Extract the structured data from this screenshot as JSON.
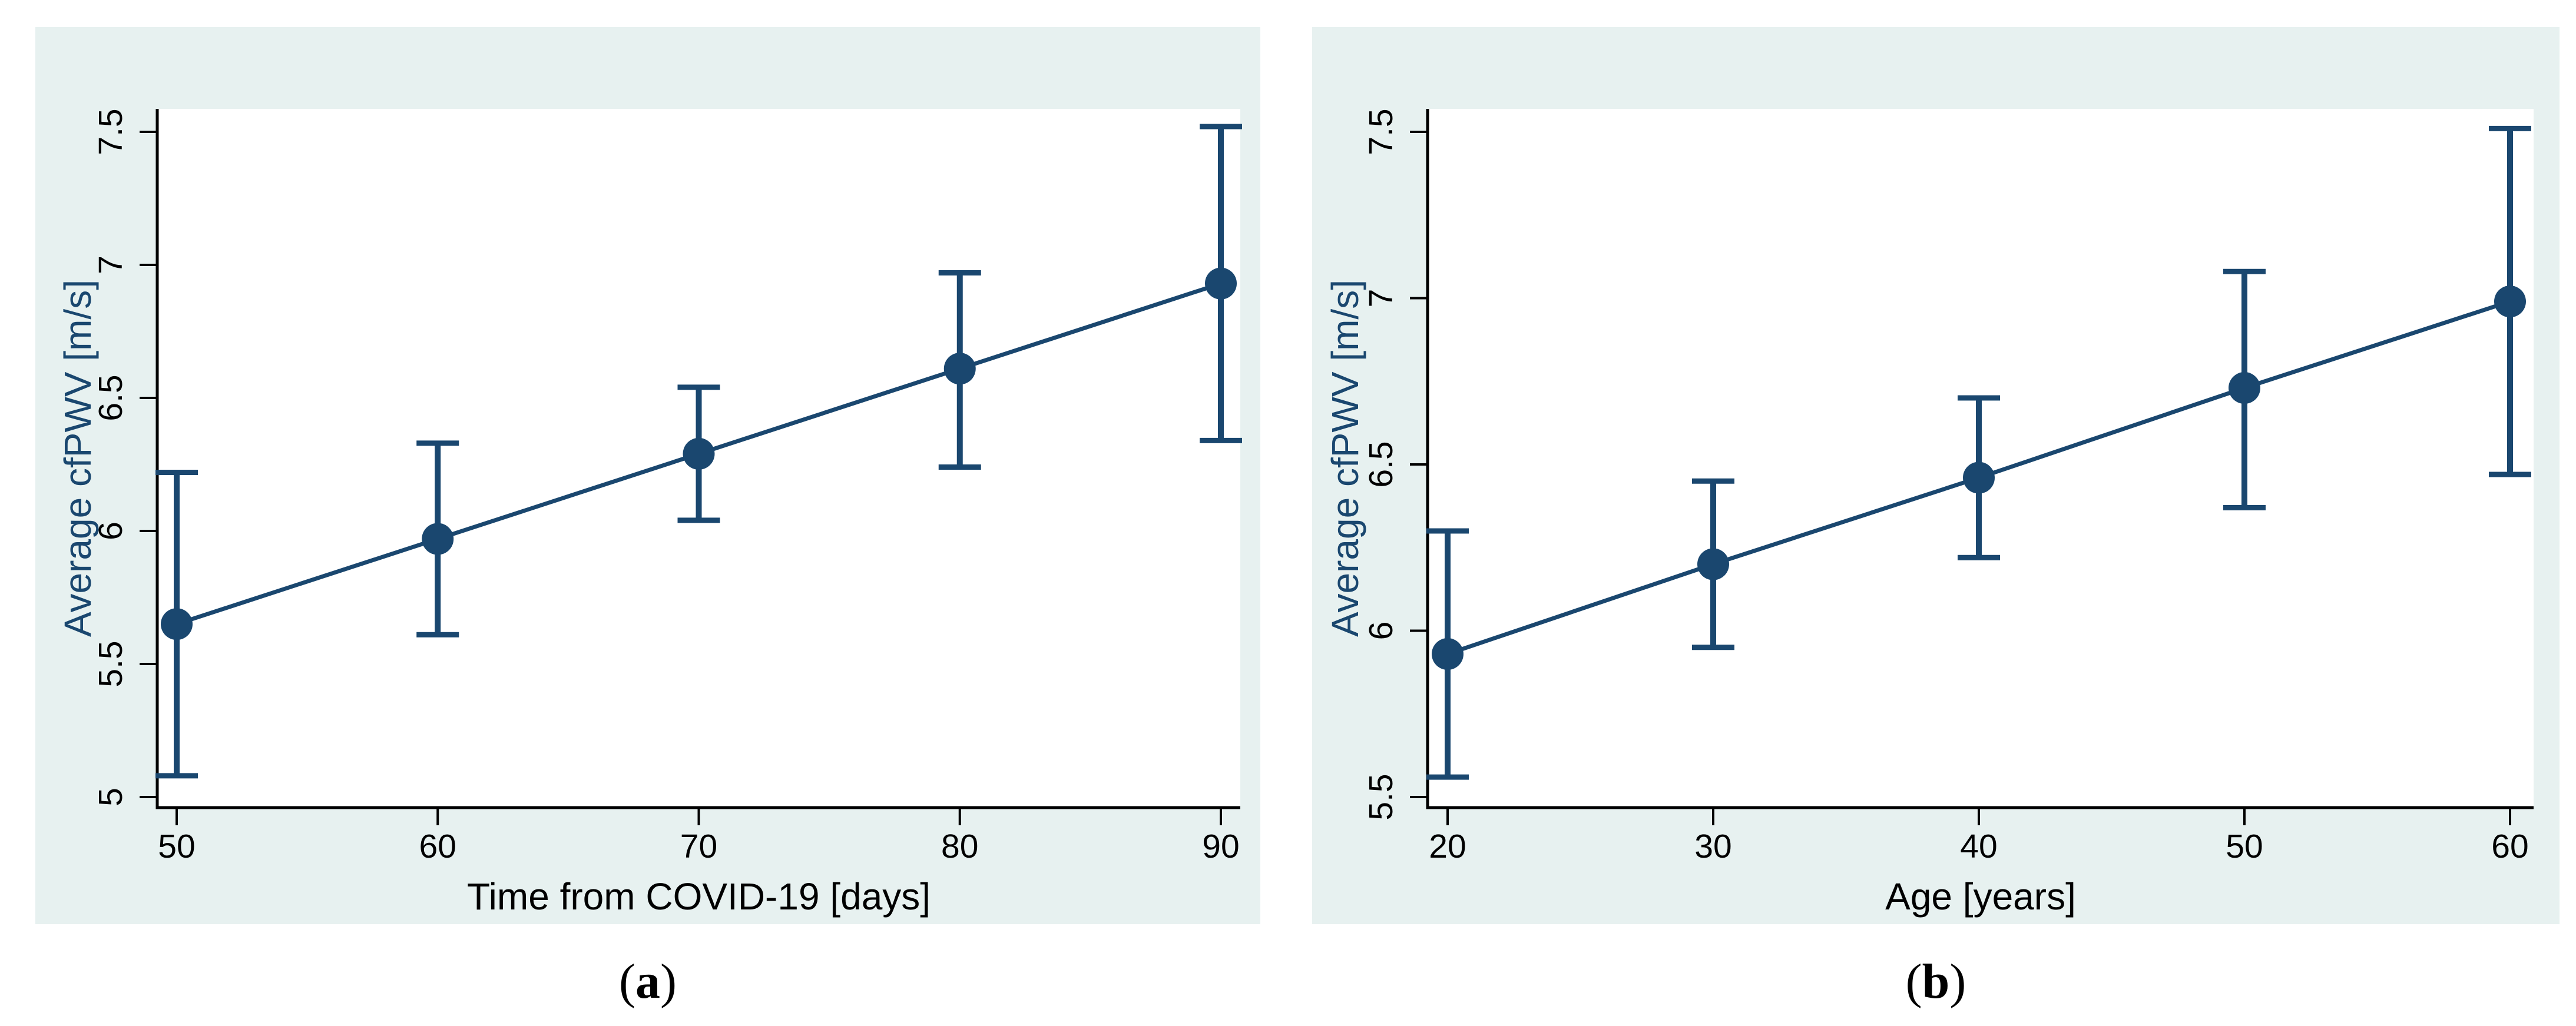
{
  "page": {
    "background": "#ffffff"
  },
  "style": {
    "panel_background": "#e7f1f0",
    "plot_background": "#ffffff",
    "series_color": "#1a476f",
    "axis_color": "#000000",
    "tick_label_color": "#000000",
    "axis_title_color": "#1a476f"
  },
  "captions": [
    {
      "open": "(",
      "label": "a",
      "close": ")"
    },
    {
      "open": "(",
      "label": "b",
      "close": ")"
    }
  ],
  "chart_data": [
    {
      "panel": "a",
      "type": "line",
      "title": "",
      "xlabel": "Time from COVID-19 [days]",
      "ylabel": "Average cfPWV [m/s]",
      "x": [
        50,
        60,
        70,
        80,
        90
      ],
      "series": [
        {
          "name": "Average cfPWV",
          "values": [
            5.65,
            5.97,
            6.29,
            6.61,
            6.93
          ]
        }
      ],
      "ci_low": [
        5.08,
        5.61,
        6.04,
        6.24,
        6.34
      ],
      "ci_high": [
        6.22,
        6.33,
        6.54,
        6.97,
        7.52
      ],
      "x_ticks": [
        50,
        60,
        70,
        80,
        90
      ],
      "y_ticks": [
        5,
        5.5,
        6,
        6.5,
        7,
        7.5
      ],
      "xlim": [
        49.3,
        90.7
      ],
      "ylim": [
        4.96,
        7.59
      ],
      "grid": false,
      "legend": "none",
      "error_bars": true,
      "marker": "circle"
    },
    {
      "panel": "b",
      "type": "line",
      "title": "",
      "xlabel": "Age [years]",
      "ylabel": "Average cfPWV [m/s]",
      "x": [
        20,
        30,
        40,
        50,
        60
      ],
      "series": [
        {
          "name": "Average cfPWV",
          "values": [
            5.93,
            6.2,
            6.46,
            6.73,
            6.99
          ]
        }
      ],
      "ci_low": [
        5.56,
        5.95,
        6.22,
        6.37,
        6.47
      ],
      "ci_high": [
        6.3,
        6.45,
        6.7,
        7.08,
        7.51
      ],
      "x_ticks": [
        20,
        30,
        40,
        50,
        60
      ],
      "y_ticks": [
        5.5,
        6,
        6.5,
        7,
        7.5
      ],
      "xlim": [
        19.2,
        60.9
      ],
      "ylim": [
        5.46,
        7.57
      ],
      "grid": false,
      "legend": "none",
      "error_bars": true,
      "marker": "circle"
    }
  ]
}
